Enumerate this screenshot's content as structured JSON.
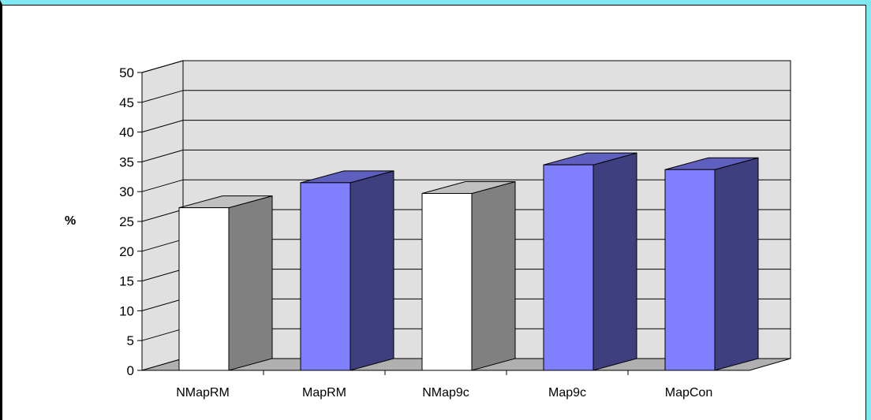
{
  "chart_data": {
    "type": "bar",
    "title": "",
    "xlabel": "",
    "ylabel": "%",
    "ylim": [
      0,
      50
    ],
    "yticks": [
      0,
      5,
      10,
      15,
      20,
      25,
      30,
      35,
      40,
      45,
      50
    ],
    "grid": true,
    "style": "3d-column",
    "categories": [
      "NMapRM",
      "MapRM",
      "NMap9c",
      "Map9c",
      "MapCon"
    ],
    "values": [
      27.3,
      31.5,
      29.7,
      34.5,
      33.7
    ],
    "colors": {
      "front": [
        "#ffffff",
        "#8080ff",
        "#ffffff",
        "#8080ff",
        "#8080ff"
      ],
      "side": [
        "#808080",
        "#3f3f7f",
        "#808080",
        "#3f3f7f",
        "#3f3f7f"
      ],
      "top": [
        "#c0c0c0",
        "#5f5fbf",
        "#c0c0c0",
        "#5f5fbf",
        "#5f5fbf"
      ],
      "wall": "#e0e0e0",
      "floor": "#b0b0b0",
      "frame_accent": "#7fe8f0"
    }
  }
}
